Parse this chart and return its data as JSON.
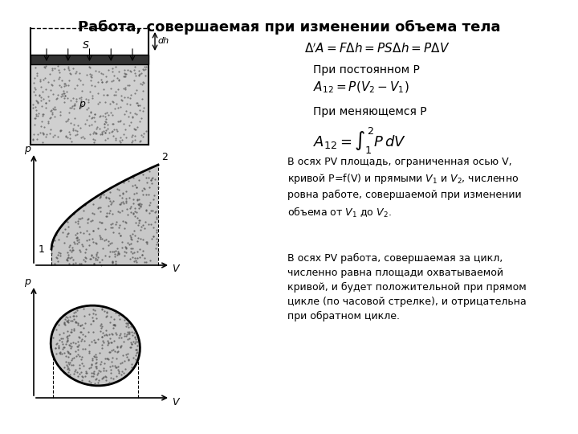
{
  "title": "Работа, совершаемая при изменении объема тела",
  "title_fontsize": 13,
  "background_color": "#ffffff",
  "text_color": "#000000",
  "formula1": "$\\Delta'A = F\\Delta h = PS\\Delta h = P\\Delta V$",
  "label_const_p": "При постоянном P",
  "formula2": "$A_{12} = P(V_2 - V_1)$",
  "label_var_p": "При меняющемся P",
  "formula3": "$A_{12} = \\int_1^2 P\\,dV$",
  "text1": "В осях PV площадь, ограниченная осью V,\nкривой P=f(V) и прямыми $V_1$ и $V_2$, численно\nровна работе, совершаемой при изменении\nобъема от $V_1$ до $V_2$.",
  "text2": "В осях PV работа, совершаемая за цикл,\nчисленно равна площади охватываемой\nкривой, и будет положительной при прямом\nцикле (по часовой стрелке), и отрицательна\nпри обратном цикле.",
  "fill_color": "#c8c8c8",
  "line_color": "#000000"
}
